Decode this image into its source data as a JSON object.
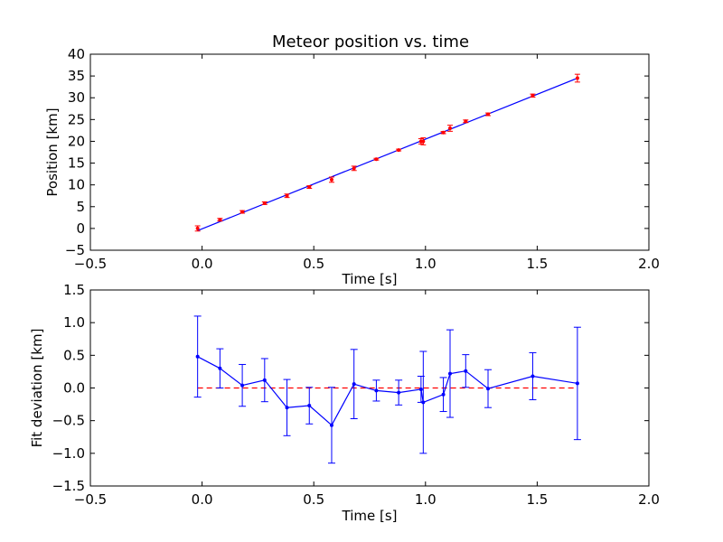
{
  "chart_data": [
    {
      "type": "scatter",
      "title": "Meteor position vs. time",
      "xlabel": "Time [s]",
      "ylabel": "Position [km]",
      "xlim": [
        -0.5,
        2.0
      ],
      "ylim": [
        -5,
        40
      ],
      "xticks": [
        "−0.5",
        "0.0",
        "0.5",
        "1.0",
        "1.5",
        "2.0"
      ],
      "yticks": [
        "−5",
        "0",
        "5",
        "10",
        "15",
        "20",
        "25",
        "30",
        "35",
        "40"
      ],
      "grid": false,
      "colors": {
        "points": "#ff0000",
        "fit": "#0000ff"
      },
      "series": [
        {
          "kind": "points-with-errorbars",
          "x": [
            -0.02,
            0.08,
            0.18,
            0.28,
            0.38,
            0.48,
            0.58,
            0.68,
            0.78,
            0.88,
            0.98,
            0.99,
            1.08,
            1.11,
            1.18,
            1.28,
            1.48,
            1.68
          ],
          "y": [
            0.0,
            2.0,
            3.8,
            5.8,
            7.5,
            9.5,
            11.2,
            13.8,
            15.9,
            18.0,
            20.0,
            20.0,
            22.0,
            23.0,
            24.6,
            26.2,
            30.5,
            34.5
          ],
          "yerr": [
            0.6,
            0.3,
            0.3,
            0.3,
            0.4,
            0.3,
            0.6,
            0.5,
            0.2,
            0.2,
            0.6,
            0.8,
            0.25,
            0.7,
            0.3,
            0.3,
            0.35,
            0.9
          ]
        },
        {
          "kind": "fit-line",
          "x": [
            -0.02,
            1.68
          ],
          "y": [
            -0.5,
            34.5
          ]
        }
      ]
    },
    {
      "type": "line",
      "title": "",
      "xlabel": "Time [s]",
      "ylabel": "Fit deviation [km]",
      "xlim": [
        -0.5,
        2.0
      ],
      "ylim": [
        -1.5,
        1.5
      ],
      "xticks": [
        "−0.5",
        "0.0",
        "0.5",
        "1.0",
        "1.5",
        "2.0"
      ],
      "yticks": [
        "−1.5",
        "−1.0",
        "−0.5",
        "0.0",
        "0.5",
        "1.0",
        "1.5"
      ],
      "grid": false,
      "colors": {
        "line": "#0000ff",
        "reference": "#ff0000"
      },
      "series": [
        {
          "kind": "line-with-errorbars",
          "x": [
            -0.02,
            0.08,
            0.18,
            0.28,
            0.38,
            0.48,
            0.58,
            0.68,
            0.78,
            0.88,
            0.98,
            0.99,
            1.08,
            1.11,
            1.18,
            1.28,
            1.48,
            1.68
          ],
          "y": [
            0.48,
            0.3,
            0.04,
            0.12,
            -0.3,
            -0.27,
            -0.57,
            0.06,
            -0.04,
            -0.07,
            -0.02,
            -0.22,
            -0.1,
            0.22,
            0.26,
            -0.01,
            0.18,
            0.07
          ],
          "yerr": [
            0.62,
            0.3,
            0.32,
            0.33,
            0.43,
            0.28,
            0.58,
            0.53,
            0.16,
            0.19,
            0.2,
            0.78,
            0.26,
            0.67,
            0.25,
            0.29,
            0.36,
            0.86
          ]
        },
        {
          "kind": "reference-dashed",
          "x": [
            -0.02,
            1.68
          ],
          "y": [
            0.0,
            0.0
          ]
        }
      ]
    }
  ]
}
